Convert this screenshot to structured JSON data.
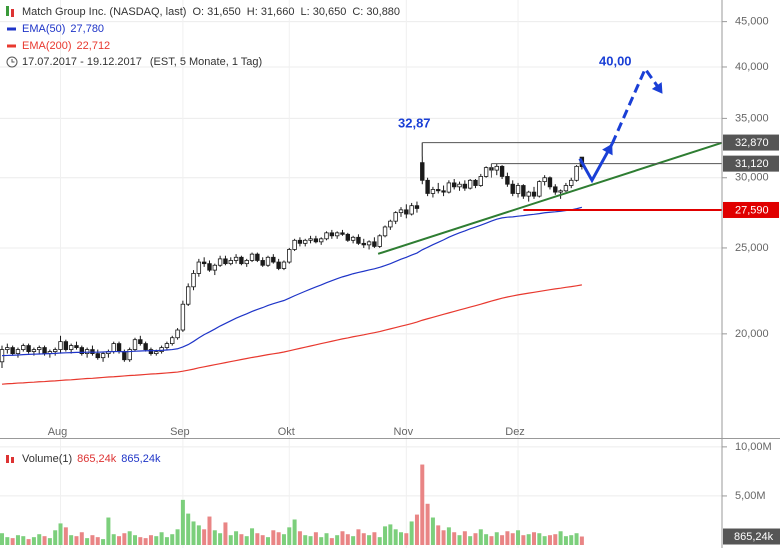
{
  "chart_data": {
    "type": "candlestick",
    "header": {
      "title": "Match Group Inc. (NASDAQ, last)",
      "ohlc": [
        "O: 31,650",
        "H: 31,660",
        "L: 30,650",
        "C: 30,880"
      ],
      "period": "17.07.2017 - 19.12.2017",
      "period_note": "(EST, 5 Monate, 1 Tag)"
    },
    "categories": [
      null,
      null,
      null,
      null,
      null,
      null,
      null,
      null,
      null,
      null,
      null,
      "Aug",
      null,
      null,
      null,
      null,
      null,
      null,
      null,
      null,
      null,
      null,
      null,
      null,
      null,
      null,
      null,
      null,
      null,
      null,
      null,
      null,
      null,
      null,
      "Sep",
      null,
      null,
      null,
      null,
      null,
      null,
      null,
      null,
      null,
      null,
      null,
      null,
      null,
      null,
      null,
      null,
      null,
      null,
      null,
      "Okt",
      null,
      null,
      null,
      null,
      null,
      null,
      null,
      null,
      null,
      null,
      null,
      null,
      null,
      null,
      null,
      null,
      null,
      null,
      null,
      null,
      null,
      "Nov",
      null,
      null,
      null,
      null,
      null,
      null,
      null,
      null,
      null,
      null,
      null,
      null,
      null,
      null,
      null,
      null,
      null,
      null,
      null,
      null,
      "Dez",
      null,
      null,
      null,
      null,
      null,
      null,
      null,
      null,
      null,
      null,
      null,
      null
    ],
    "open": [
      18.6,
      19.2,
      19.3,
      19.0,
      19.2,
      19.4,
      19.1,
      19.2,
      19.3,
      19.0,
      19.1,
      19.2,
      19.6,
      19.2,
      19.4,
      19.3,
      19.0,
      19.2,
      19.0,
      18.8,
      19.0,
      19.1,
      19.5,
      19.1,
      18.7,
      19.2,
      19.7,
      19.5,
      19.2,
      19.0,
      19.1,
      19.3,
      19.5,
      19.8,
      20.2,
      21.6,
      22.6,
      23.4,
      24.1,
      24.0,
      23.6,
      23.9,
      24.3,
      24.0,
      24.2,
      24.4,
      24.0,
      24.2,
      24.6,
      24.2,
      23.9,
      24.4,
      24.1,
      23.7,
      24.1,
      24.9,
      25.5,
      25.3,
      25.5,
      25.6,
      25.4,
      25.6,
      26.0,
      25.8,
      26.0,
      25.9,
      25.5,
      25.7,
      25.3,
      25.2,
      25.4,
      25.1,
      25.8,
      26.4,
      26.8,
      27.4,
      27.6,
      27.3,
      27.9,
      31.2,
      29.8,
      28.8,
      29.1,
      29.0,
      28.9,
      29.6,
      29.3,
      29.5,
      29.2,
      29.8,
      29.4,
      30.1,
      30.8,
      30.6,
      30.9,
      30.1,
      29.5,
      28.8,
      29.4,
      28.6,
      28.9,
      28.6,
      29.7,
      30.0,
      29.3,
      28.9,
      29.0,
      29.4,
      29.8,
      31.65
    ],
    "high": [
      19.4,
      19.5,
      19.4,
      19.3,
      19.5,
      19.5,
      19.3,
      19.4,
      19.4,
      19.2,
      19.3,
      19.9,
      19.7,
      19.5,
      19.6,
      19.4,
      19.3,
      19.4,
      19.2,
      19.1,
      19.2,
      19.6,
      19.6,
      19.2,
      19.3,
      19.8,
      19.9,
      19.6,
      19.3,
      19.2,
      19.4,
      19.6,
      19.9,
      20.3,
      21.8,
      22.8,
      23.6,
      24.3,
      24.4,
      24.2,
      24.0,
      24.5,
      24.5,
      24.4,
      24.6,
      24.5,
      24.3,
      24.7,
      24.7,
      24.4,
      24.5,
      24.6,
      24.3,
      24.2,
      25.0,
      25.6,
      25.7,
      25.6,
      25.8,
      25.8,
      25.7,
      26.1,
      26.2,
      26.1,
      26.2,
      26.0,
      25.8,
      25.9,
      25.6,
      25.5,
      25.7,
      25.9,
      26.5,
      26.9,
      27.5,
      27.8,
      28.0,
      28.1,
      28.2,
      32.87,
      30.0,
      29.3,
      29.6,
      29.4,
      29.8,
      29.9,
      29.7,
      29.8,
      29.9,
      29.9,
      30.3,
      30.9,
      31.12,
      31.1,
      31.0,
      30.4,
      29.8,
      29.6,
      29.5,
      29.0,
      29.3,
      29.8,
      30.2,
      30.1,
      29.5,
      29.1,
      29.6,
      30.0,
      31.0,
      31.66
    ],
    "low": [
      18.3,
      19.0,
      18.9,
      18.8,
      19.1,
      19.0,
      18.9,
      19.0,
      18.9,
      18.8,
      18.9,
      19.0,
      19.1,
      19.0,
      19.2,
      18.9,
      18.8,
      18.9,
      18.7,
      18.6,
      18.8,
      19.0,
      19.0,
      18.6,
      18.6,
      19.1,
      19.4,
      19.1,
      18.9,
      18.9,
      19.0,
      19.2,
      19.4,
      19.7,
      20.1,
      21.5,
      22.4,
      23.2,
      23.8,
      23.5,
      23.3,
      23.8,
      23.9,
      23.9,
      24.0,
      23.9,
      23.8,
      24.1,
      24.1,
      23.8,
      23.8,
      24.0,
      23.6,
      23.6,
      24.0,
      24.8,
      25.1,
      25.1,
      25.3,
      25.3,
      25.2,
      25.5,
      25.6,
      25.6,
      25.8,
      25.4,
      25.3,
      25.2,
      25.0,
      24.9,
      25.0,
      25.0,
      25.7,
      26.2,
      26.6,
      27.1,
      27.0,
      27.2,
      27.4,
      29.5,
      28.6,
      28.5,
      28.8,
      28.6,
      28.8,
      29.1,
      29.0,
      29.0,
      29.1,
      29.2,
      29.3,
      30.0,
      30.4,
      30.2,
      29.9,
      29.3,
      28.6,
      28.5,
      28.4,
      28.2,
      28.4,
      28.5,
      29.4,
      29.1,
      28.7,
      28.4,
      28.9,
      29.2,
      29.7,
      30.65
    ],
    "close": [
      19.2,
      19.3,
      19.0,
      19.2,
      19.4,
      19.1,
      19.2,
      19.3,
      19.0,
      19.1,
      19.2,
      19.6,
      19.2,
      19.4,
      19.3,
      19.0,
      19.2,
      19.0,
      18.8,
      19.0,
      19.1,
      19.5,
      19.1,
      18.7,
      19.2,
      19.7,
      19.5,
      19.2,
      19.0,
      19.1,
      19.3,
      19.5,
      19.8,
      20.2,
      21.6,
      22.6,
      23.4,
      24.1,
      24.0,
      23.6,
      23.9,
      24.3,
      24.0,
      24.2,
      24.4,
      24.0,
      24.2,
      24.6,
      24.2,
      23.9,
      24.4,
      24.1,
      23.7,
      24.1,
      24.9,
      25.5,
      25.3,
      25.5,
      25.6,
      25.4,
      25.6,
      26.0,
      25.8,
      26.0,
      25.9,
      25.5,
      25.7,
      25.3,
      25.2,
      25.4,
      25.1,
      25.8,
      26.4,
      26.8,
      27.4,
      27.6,
      27.3,
      27.9,
      27.7,
      29.8,
      28.8,
      29.1,
      29.0,
      28.9,
      29.6,
      29.3,
      29.5,
      29.2,
      29.8,
      29.4,
      30.1,
      30.8,
      30.6,
      30.9,
      30.1,
      29.5,
      28.8,
      29.4,
      28.6,
      28.9,
      28.6,
      29.7,
      30.0,
      29.3,
      28.9,
      29.0,
      29.4,
      29.8,
      30.9,
      30.88
    ],
    "up_color": "#ffffff",
    "down_color": "#1a1a1a",
    "series": [
      {
        "name": "EMA(50)",
        "color": "#1f35c8",
        "last_label": "27,780",
        "values": [
          18.9,
          18.91,
          18.92,
          18.93,
          18.95,
          18.96,
          18.97,
          18.98,
          18.99,
          19.0,
          19.01,
          19.03,
          19.04,
          19.05,
          19.06,
          19.06,
          19.07,
          19.07,
          19.07,
          19.08,
          19.09,
          19.1,
          19.1,
          19.09,
          19.1,
          19.12,
          19.13,
          19.14,
          19.14,
          19.15,
          19.16,
          19.18,
          19.2,
          19.24,
          19.33,
          19.45,
          19.61,
          19.79,
          19.96,
          20.1,
          20.25,
          20.41,
          20.55,
          20.69,
          20.83,
          20.95,
          21.07,
          21.2,
          21.31,
          21.41,
          21.53,
          21.63,
          21.72,
          21.81,
          21.94,
          22.08,
          22.21,
          22.34,
          22.47,
          22.59,
          22.71,
          22.84,
          22.96,
          23.08,
          23.19,
          23.28,
          23.38,
          23.46,
          23.53,
          23.61,
          23.68,
          23.77,
          23.88,
          24.0,
          24.14,
          24.28,
          24.4,
          24.54,
          24.67,
          24.88,
          25.04,
          25.21,
          25.37,
          25.53,
          25.71,
          25.86,
          26.0,
          26.13,
          26.27,
          26.39,
          26.52,
          26.66,
          26.81,
          26.94,
          27.03,
          27.08,
          27.1,
          27.15,
          27.19,
          27.24,
          27.28,
          27.33,
          27.39,
          27.43,
          27.46,
          27.5,
          27.55,
          27.6,
          27.68,
          27.78
        ]
      },
      {
        "name": "EMA(200)",
        "color": "#e8392f",
        "last_label": "22,712",
        "values": [
          17.55,
          17.57,
          17.58,
          17.6,
          17.61,
          17.63,
          17.64,
          17.66,
          17.67,
          17.69,
          17.7,
          17.72,
          17.74,
          17.75,
          17.77,
          17.79,
          17.81,
          17.82,
          17.84,
          17.86,
          17.88,
          17.89,
          17.91,
          17.93,
          17.95,
          17.96,
          17.98,
          18.0,
          18.02,
          18.03,
          18.05,
          18.07,
          18.09,
          18.11,
          18.15,
          18.2,
          18.25,
          18.31,
          18.36,
          18.41,
          18.46,
          18.51,
          18.56,
          18.61,
          18.66,
          18.71,
          18.76,
          18.81,
          18.85,
          18.9,
          18.95,
          18.99,
          19.03,
          19.08,
          19.14,
          19.2,
          19.26,
          19.32,
          19.38,
          19.44,
          19.5,
          19.56,
          19.62,
          19.68,
          19.74,
          19.79,
          19.85,
          19.9,
          19.95,
          20.01,
          20.06,
          20.12,
          20.19,
          20.26,
          20.33,
          20.4,
          20.47,
          20.54,
          20.62,
          20.72,
          20.8,
          20.88,
          20.96,
          21.04,
          21.12,
          21.2,
          21.28,
          21.36,
          21.44,
          21.52,
          21.6,
          21.69,
          21.78,
          21.86,
          21.94,
          22.01,
          22.07,
          22.13,
          22.18,
          22.23,
          22.28,
          22.33,
          22.38,
          22.43,
          22.48,
          22.52,
          22.57,
          22.61,
          22.66,
          22.712
        ]
      }
    ],
    "log_scale": true,
    "grid": true,
    "ylim": [
      15.26,
      47.6
    ],
    "yticks": [
      {
        "value": 20,
        "label": "20,000"
      },
      {
        "value": 25,
        "label": "25,000"
      },
      {
        "value": 30,
        "label": "30,000"
      },
      {
        "value": 35,
        "label": "35,000"
      },
      {
        "value": 40,
        "label": "40,000"
      },
      {
        "value": 45,
        "label": "45,000"
      }
    ],
    "levels": [
      {
        "value": 32.87,
        "label": "32,870",
        "from": 79,
        "color": "#555555"
      },
      {
        "value": 31.12,
        "label": "31,120",
        "from": 92,
        "color": "#555555"
      },
      {
        "value": 27.59,
        "label": "27,590",
        "from": 98,
        "color": "#e00000"
      }
    ],
    "trendline": {
      "color": "#2e7d32",
      "x": [
        70.7,
        135.3
      ],
      "y": [
        24.62,
        32.85
      ]
    },
    "forecast": {
      "color": "#1a3fd6",
      "x": [
        108.6,
        110.9,
        114.7
      ],
      "y": [
        31.53,
        29.8,
        32.77
      ],
      "dashed_x": [
        114.7,
        120.9,
        123.4
      ],
      "dashed_y": [
        32.77,
        39.8,
        37.9
      ]
    },
    "annotations": [
      "32,87",
      "40,00"
    ],
    "volume": {
      "name": "Volume(1)",
      "last_label": "865,24k",
      "up_color": "#7ccf7c",
      "down_color": "#e98585",
      "ylim": [
        0,
        10.7
      ],
      "yticks": [
        {
          "value": 5,
          "label": "5,00M"
        },
        {
          "value": 10,
          "label": "10,00M"
        }
      ],
      "last": 0.86524,
      "values": [
        1.2,
        0.8,
        0.7,
        1.0,
        0.9,
        0.6,
        0.8,
        1.1,
        0.9,
        0.7,
        1.5,
        2.2,
        1.8,
        1.0,
        0.9,
        1.3,
        0.7,
        1.0,
        0.8,
        0.6,
        2.8,
        1.1,
        0.9,
        1.2,
        1.4,
        1.0,
        0.8,
        0.7,
        1.0,
        0.9,
        1.3,
        0.8,
        1.1,
        1.6,
        4.6,
        3.2,
        2.4,
        2.0,
        1.6,
        2.9,
        1.5,
        1.2,
        2.3,
        1.0,
        1.4,
        1.1,
        0.9,
        1.7,
        1.2,
        1.0,
        0.8,
        1.5,
        1.3,
        1.1,
        1.8,
        2.6,
        1.4,
        1.0,
        0.9,
        1.3,
        0.8,
        1.2,
        0.7,
        1.0,
        1.4,
        1.1,
        0.9,
        1.6,
        1.2,
        1.0,
        1.3,
        0.8,
        1.9,
        2.1,
        1.6,
        1.3,
        1.2,
        2.4,
        3.1,
        8.2,
        4.2,
        2.8,
        2.0,
        1.5,
        1.8,
        1.3,
        1.0,
        1.4,
        0.9,
        1.2,
        1.6,
        1.1,
        0.9,
        1.3,
        1.0,
        1.4,
        1.2,
        1.5,
        1.0,
        1.1,
        1.3,
        1.2,
        0.9,
        1.0,
        1.1,
        1.4,
        0.9,
        1.0,
        1.2,
        0.86524
      ]
    }
  }
}
